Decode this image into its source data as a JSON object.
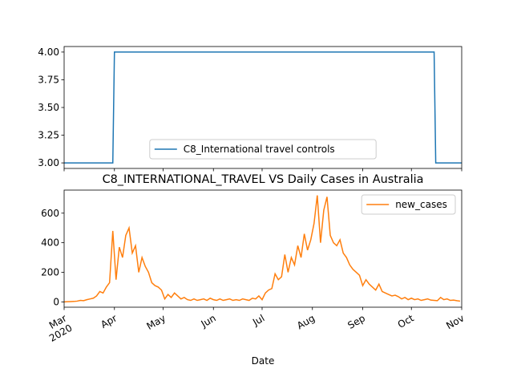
{
  "chart_data": [
    {
      "type": "line",
      "x": [
        0,
        30,
        31,
        228,
        229,
        245
      ],
      "series": [
        {
          "name": "C8_International travel controls",
          "color": "#1f77b4",
          "values": [
            3,
            3,
            4,
            4,
            3,
            3
          ]
        }
      ],
      "xlim": [
        0,
        245
      ],
      "ylim": [
        2.95,
        4.05
      ],
      "yticks": [
        {
          "value": 3,
          "label": "3.00"
        },
        {
          "value": 3.25,
          "label": "3.25"
        },
        {
          "value": 3.5,
          "label": "3.50"
        },
        {
          "value": 3.75,
          "label": "3.75"
        },
        {
          "value": 4,
          "label": "4.00"
        }
      ],
      "legend": "lower center"
    },
    {
      "type": "line",
      "title": "C8_INTERNATIONAL_TRAVEL VS Daily Cases in Australia",
      "x_label": "Date",
      "x": [
        0,
        2,
        4,
        6,
        8,
        10,
        12,
        14,
        16,
        18,
        20,
        22,
        24,
        26,
        28,
        30,
        32,
        34,
        36,
        38,
        40,
        42,
        44,
        46,
        48,
        50,
        52,
        54,
        56,
        58,
        60,
        62,
        64,
        66,
        68,
        70,
        72,
        74,
        76,
        78,
        80,
        82,
        84,
        86,
        88,
        90,
        92,
        94,
        96,
        98,
        100,
        102,
        104,
        106,
        108,
        110,
        112,
        114,
        116,
        118,
        120,
        122,
        124,
        126,
        128,
        130,
        132,
        134,
        136,
        138,
        140,
        142,
        144,
        146,
        148,
        150,
        152,
        154,
        156,
        158,
        160,
        162,
        164,
        166,
        168,
        170,
        172,
        174,
        176,
        178,
        180,
        182,
        184,
        186,
        188,
        190,
        192,
        194,
        196,
        198,
        200,
        202,
        204,
        206,
        208,
        210,
        212,
        214,
        216,
        218,
        220,
        222,
        224,
        226,
        228,
        230,
        232,
        234,
        236,
        238,
        240,
        242,
        244
      ],
      "series": [
        {
          "name": "new_cases",
          "color": "#ff7f0e",
          "values": [
            0,
            1,
            2,
            3,
            5,
            10,
            8,
            15,
            20,
            25,
            40,
            70,
            60,
            100,
            130,
            480,
            150,
            370,
            300,
            450,
            500,
            330,
            380,
            200,
            300,
            240,
            200,
            130,
            110,
            100,
            80,
            20,
            50,
            30,
            60,
            40,
            20,
            30,
            15,
            10,
            20,
            10,
            15,
            20,
            10,
            25,
            15,
            10,
            20,
            10,
            15,
            20,
            10,
            15,
            10,
            20,
            15,
            10,
            25,
            20,
            40,
            15,
            60,
            80,
            90,
            190,
            150,
            170,
            320,
            200,
            300,
            250,
            380,
            300,
            460,
            350,
            420,
            530,
            720,
            400,
            620,
            710,
            450,
            400,
            380,
            420,
            330,
            300,
            250,
            220,
            200,
            180,
            110,
            150,
            120,
            100,
            80,
            120,
            70,
            60,
            50,
            40,
            45,
            35,
            20,
            30,
            15,
            25,
            15,
            20,
            10,
            15,
            20,
            12,
            10,
            8,
            30,
            15,
            20,
            10,
            12,
            8,
            5
          ]
        }
      ],
      "xlim": [
        0,
        245
      ],
      "xticks": [
        {
          "value": 0,
          "label": "Mar"
        },
        {
          "value": 31,
          "label": "Apr"
        },
        {
          "value": 61,
          "label": "May"
        },
        {
          "value": 92,
          "label": "Jun"
        },
        {
          "value": 122,
          "label": "Jul"
        },
        {
          "value": 153,
          "label": "Aug"
        },
        {
          "value": 184,
          "label": "Sep"
        },
        {
          "value": 214,
          "label": "Oct"
        },
        {
          "value": 245,
          "label": "Nov"
        }
      ],
      "x_year_label": "2020",
      "ylim": [
        -36,
        756
      ],
      "yticks": [
        0,
        200,
        400,
        600
      ],
      "legend": "upper right"
    }
  ]
}
